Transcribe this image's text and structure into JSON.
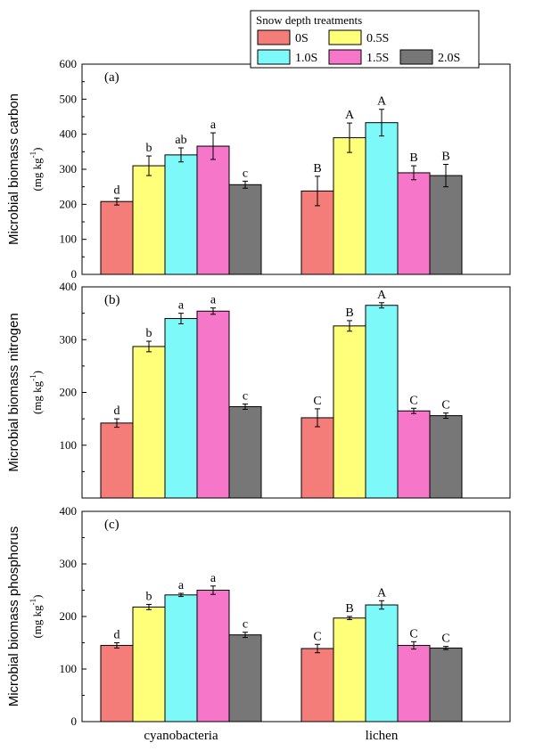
{
  "legend": {
    "title": "Snow depth treatments",
    "placement": "top-right",
    "entries": [
      {
        "label": "0S",
        "color": "#f47c79"
      },
      {
        "label": "0.5S",
        "color": "#ffff7a"
      },
      {
        "label": "1.0S",
        "color": "#7ef9f9"
      },
      {
        "label": "1.5S",
        "color": "#f676c9"
      },
      {
        "label": "2.0S",
        "color": "#777777"
      }
    ]
  },
  "chart_data": [
    {
      "type": "bar",
      "panel_label": "(a)",
      "ylabel_main": "Microbial biomass carbon",
      "ylabel_unit": "(mg kg",
      "ylabel_unit_sup": "-1",
      "ylabel_unit_close": ")",
      "ylim": [
        0,
        600
      ],
      "yticks": [
        "0",
        "100",
        "200",
        "300",
        "400",
        "500",
        "600"
      ],
      "categories": [
        "cyanobacteria",
        "lichen"
      ],
      "grid": false,
      "series": [
        {
          "name": "0S",
          "values": [
            208,
            238
          ],
          "errors": [
            10,
            42
          ],
          "letters": [
            "d",
            "B"
          ]
        },
        {
          "name": "0.5S",
          "values": [
            310,
            390
          ],
          "errors": [
            28,
            42
          ],
          "letters": [
            "b",
            "A"
          ]
        },
        {
          "name": "1.0S",
          "values": [
            341,
            433
          ],
          "errors": [
            20,
            38
          ],
          "letters": [
            "ab",
            "A"
          ]
        },
        {
          "name": "1.5S",
          "values": [
            366,
            290
          ],
          "errors": [
            38,
            20
          ],
          "letters": [
            "a",
            "B"
          ]
        },
        {
          "name": "2.0S",
          "values": [
            256,
            282
          ],
          "errors": [
            10,
            32
          ],
          "letters": [
            "c",
            "B"
          ]
        }
      ]
    },
    {
      "type": "bar",
      "panel_label": "(b)",
      "ylabel_main": "Microbial biomass nitrogen",
      "ylabel_unit": "(mg kg",
      "ylabel_unit_sup": "-1",
      "ylabel_unit_close": ")",
      "ylim": [
        0,
        400
      ],
      "yticks": [
        "100",
        "200",
        "300",
        "400"
      ],
      "categories": [
        "cyanobacteria",
        "lichen"
      ],
      "grid": false,
      "series": [
        {
          "name": "0S",
          "values": [
            142,
            152
          ],
          "errors": [
            8,
            17
          ],
          "letters": [
            "d",
            "C"
          ]
        },
        {
          "name": "0.5S",
          "values": [
            287,
            326
          ],
          "errors": [
            10,
            10
          ],
          "letters": [
            "b",
            "B"
          ]
        },
        {
          "name": "1.0S",
          "values": [
            340,
            365
          ],
          "errors": [
            10,
            5
          ],
          "letters": [
            "a",
            "A"
          ]
        },
        {
          "name": "1.5S",
          "values": [
            354,
            165
          ],
          "errors": [
            6,
            5
          ],
          "letters": [
            "a",
            "C"
          ]
        },
        {
          "name": "2.0S",
          "values": [
            173,
            156
          ],
          "errors": [
            5,
            5
          ],
          "letters": [
            "c",
            "C"
          ]
        }
      ]
    },
    {
      "type": "bar",
      "panel_label": "(c)",
      "ylabel_main": "Microbial biomass phosphorus",
      "ylabel_unit": "(mg kg",
      "ylabel_unit_sup": "-1",
      "ylabel_unit_close": ")",
      "ylim": [
        0,
        400
      ],
      "yticks": [
        "0",
        "100",
        "200",
        "300",
        "400"
      ],
      "categories": [
        "cyanobacteria",
        "lichen"
      ],
      "grid": false,
      "series": [
        {
          "name": "0S",
          "values": [
            145,
            139
          ],
          "errors": [
            5,
            8
          ],
          "letters": [
            "d",
            "C"
          ]
        },
        {
          "name": "0.5S",
          "values": [
            218,
            197
          ],
          "errors": [
            5,
            3
          ],
          "letters": [
            "b",
            "B"
          ]
        },
        {
          "name": "1.0S",
          "values": [
            241,
            222
          ],
          "errors": [
            3,
            8
          ],
          "letters": [
            "a",
            "A"
          ]
        },
        {
          "name": "1.5S",
          "values": [
            250,
            145
          ],
          "errors": [
            8,
            7
          ],
          "letters": [
            "a",
            "C"
          ]
        },
        {
          "name": "2.0S",
          "values": [
            165,
            140
          ],
          "errors": [
            5,
            3
          ],
          "letters": [
            "c",
            "C"
          ]
        }
      ]
    }
  ]
}
